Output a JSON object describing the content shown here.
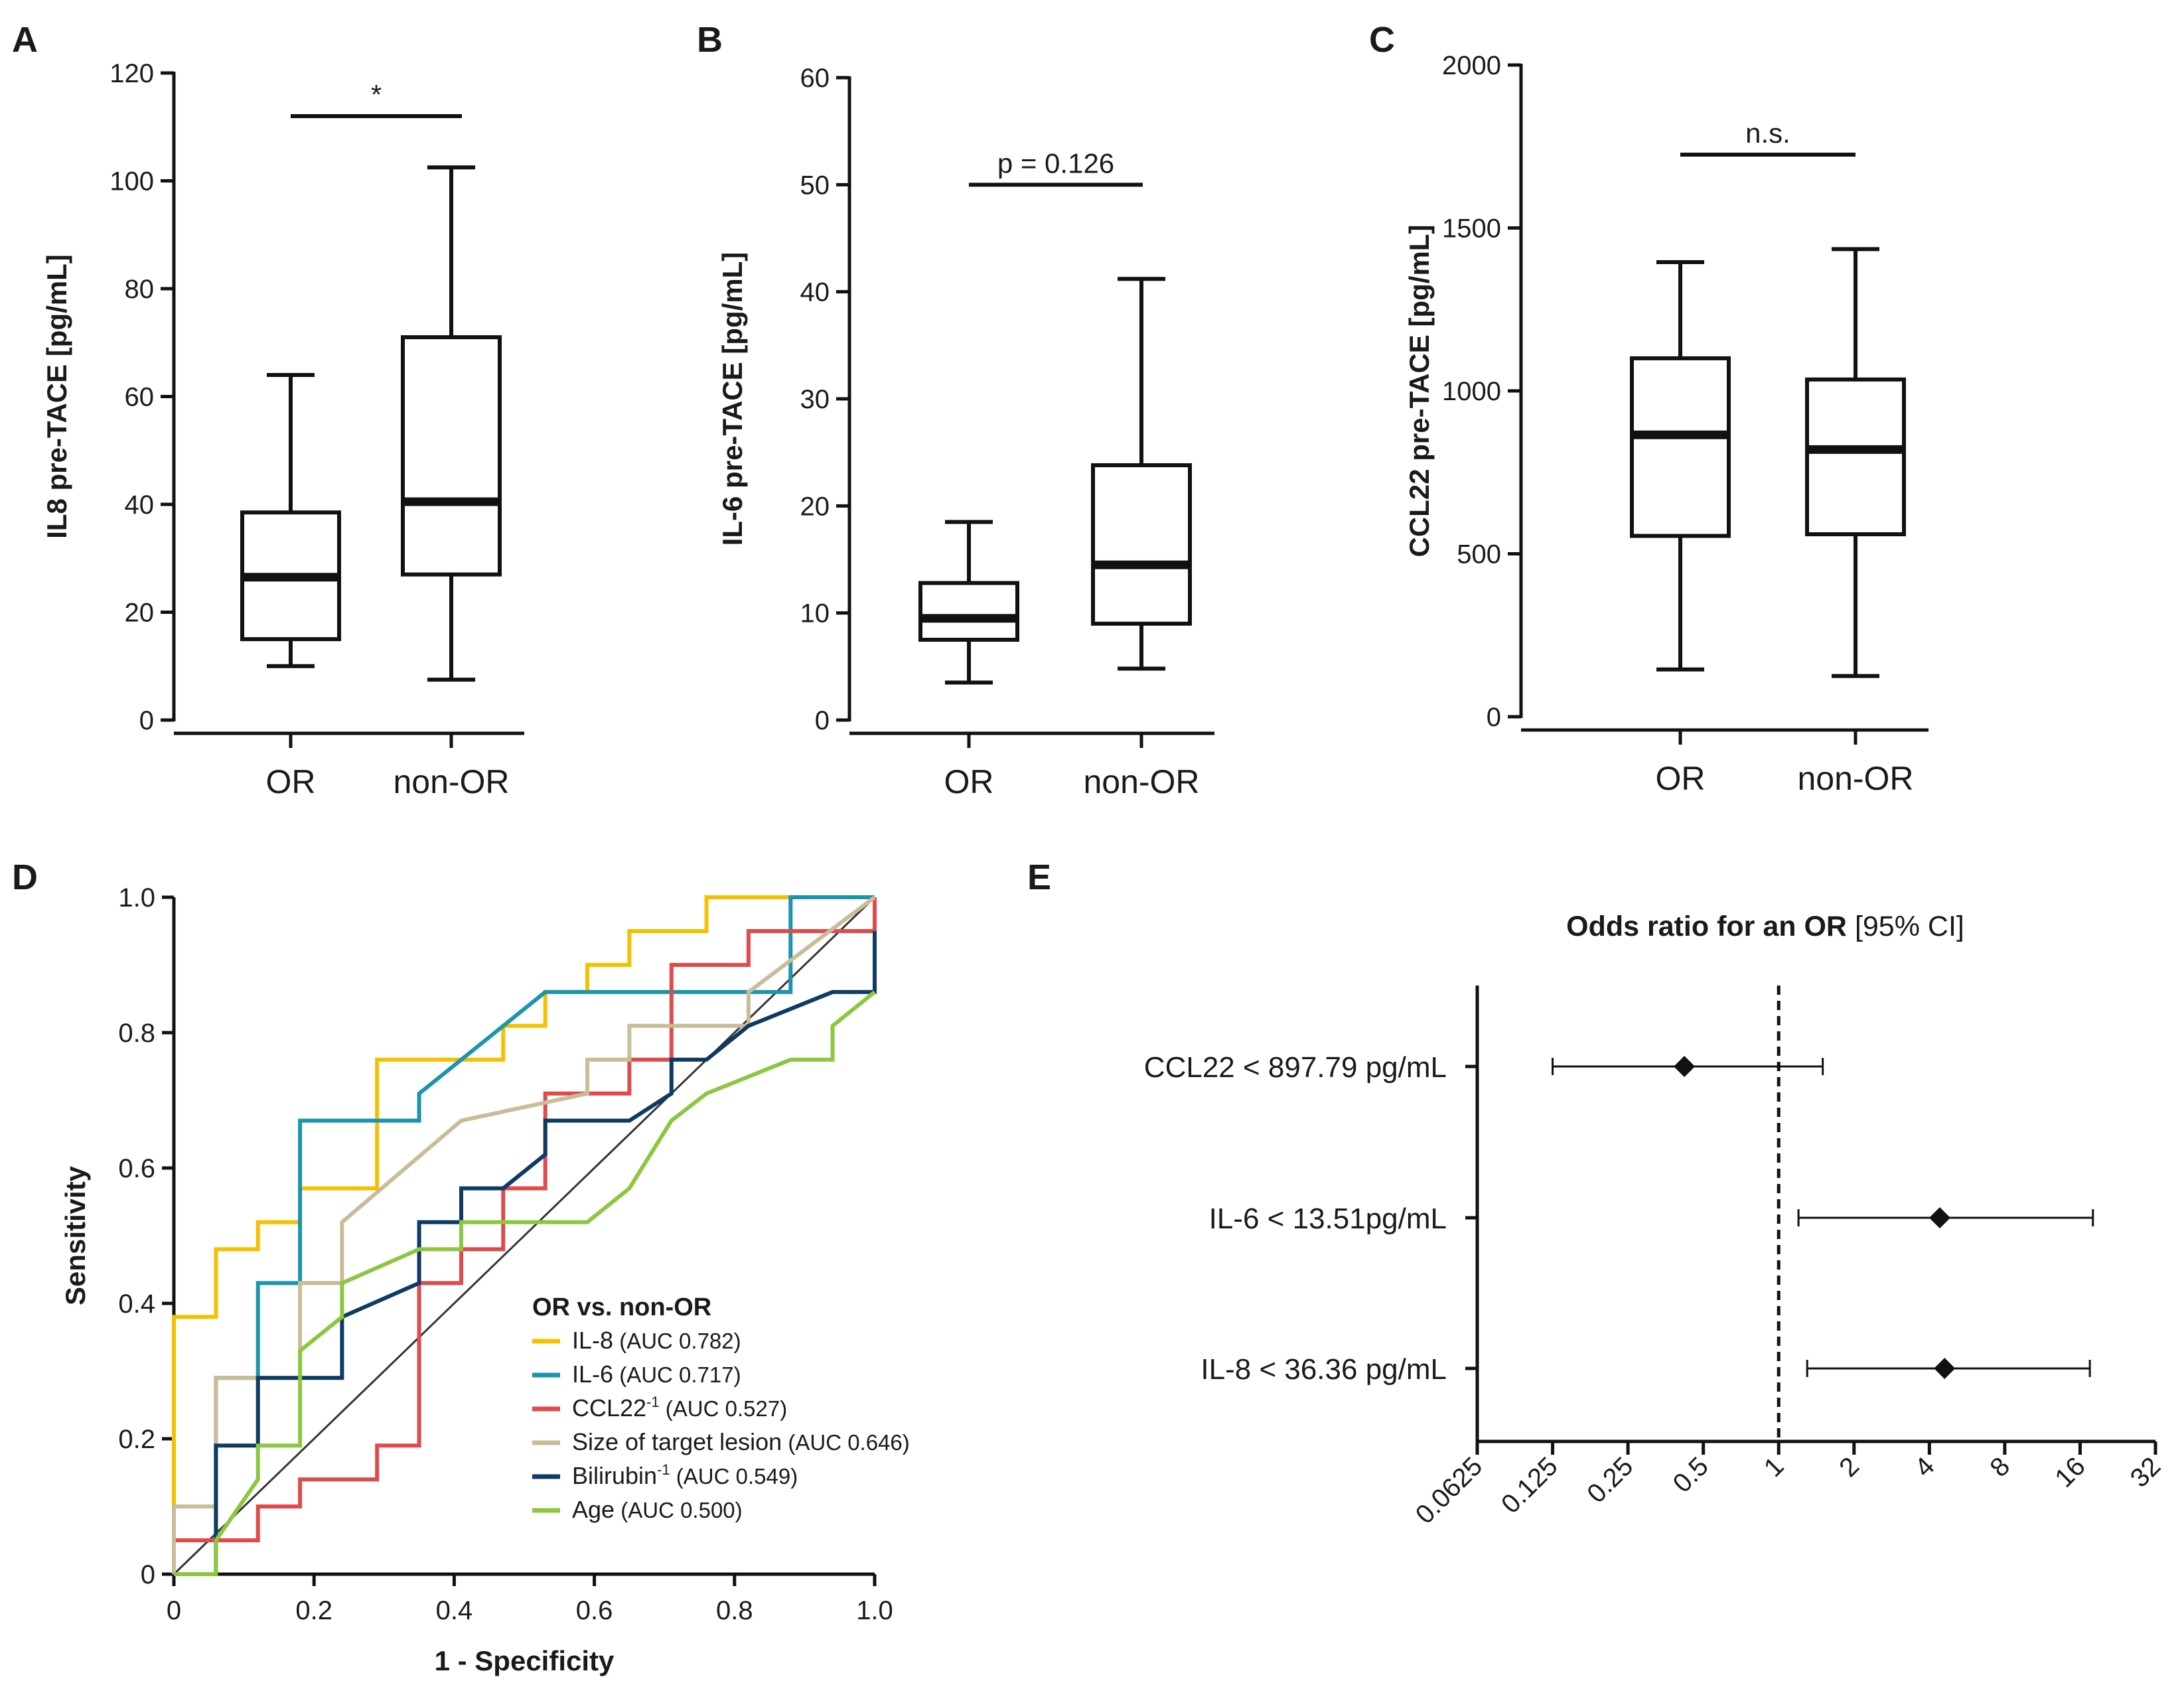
{
  "chart_data": [
    {
      "panel": "A",
      "type": "box",
      "ylabel": "IL8 pre-TACE [pg/mL]",
      "ylim": [
        0,
        120
      ],
      "yticks": [
        0,
        20,
        40,
        60,
        80,
        100,
        120
      ],
      "categories": [
        "OR",
        "non-OR"
      ],
      "boxes": [
        {
          "min": 10,
          "q1": 15,
          "median": 26.5,
          "q3": 38.5,
          "max": 64
        },
        {
          "min": 7.5,
          "q1": 27,
          "median": 40.5,
          "q3": 71,
          "max": 102.5
        }
      ],
      "significance": {
        "label": "*",
        "y": 112
      }
    },
    {
      "panel": "B",
      "type": "box",
      "ylabel": "IL-6 pre-TACE [pg/mL]",
      "ylim": [
        0,
        60
      ],
      "yticks": [
        0,
        10,
        20,
        30,
        40,
        50,
        60
      ],
      "categories": [
        "OR",
        "non-OR"
      ],
      "boxes": [
        {
          "min": 3.5,
          "q1": 7.5,
          "median": 9.5,
          "q3": 12.8,
          "max": 18.5
        },
        {
          "min": 4.8,
          "q1": 9,
          "median": 14.5,
          "q3": 23.8,
          "max": 41.2
        }
      ],
      "significance": {
        "label": "p = 0.126",
        "y": 50
      }
    },
    {
      "panel": "C",
      "type": "box",
      "ylabel": "CCL22 pre-TACE [pg/mL]",
      "ylim": [
        0,
        2000
      ],
      "yticks": [
        0,
        500,
        1000,
        1500,
        2000
      ],
      "categories": [
        "OR",
        "non-OR"
      ],
      "boxes": [
        {
          "min": 145,
          "q1": 555,
          "median": 865,
          "q3": 1100,
          "max": 1395
        },
        {
          "min": 125,
          "q1": 560,
          "median": 820,
          "q3": 1035,
          "max": 1435
        }
      ],
      "significance": {
        "label": "n.s.",
        "y": 1725
      }
    },
    {
      "panel": "D",
      "type": "line",
      "xlabel": "1 - Specificity",
      "ylabel": "Sensitivity",
      "xlim": [
        0,
        1
      ],
      "ylim": [
        0,
        1
      ],
      "xticks": [
        "0",
        "0.2",
        "0.4",
        "0.6",
        "0.8",
        "1.0"
      ],
      "yticks": [
        "0",
        "0.2",
        "0.4",
        "0.6",
        "0.8",
        "1.0"
      ],
      "legend_title": "OR vs. non-OR",
      "series": [
        {
          "name": "IL-8",
          "auc_label": "(AUC 0.782)",
          "color": "#f5c000",
          "points": [
            [
              0,
              0
            ],
            [
              0,
              0.38
            ],
            [
              0.06,
              0.38
            ],
            [
              0.06,
              0.48
            ],
            [
              0.12,
              0.48
            ],
            [
              0.12,
              0.52
            ],
            [
              0.18,
              0.52
            ],
            [
              0.18,
              0.57
            ],
            [
              0.29,
              0.57
            ],
            [
              0.29,
              0.76
            ],
            [
              0.47,
              0.76
            ],
            [
              0.47,
              0.81
            ],
            [
              0.53,
              0.81
            ],
            [
              0.53,
              0.86
            ],
            [
              0.59,
              0.86
            ],
            [
              0.59,
              0.9
            ],
            [
              0.65,
              0.9
            ],
            [
              0.65,
              0.95
            ],
            [
              0.76,
              0.95
            ],
            [
              0.76,
              1.0
            ],
            [
              1.0,
              1.0
            ]
          ]
        },
        {
          "name": "IL-6",
          "auc_label": "(AUC 0.717)",
          "color": "#1b94ad",
          "points": [
            [
              0,
              0
            ],
            [
              0.06,
              0
            ],
            [
              0.06,
              0.29
            ],
            [
              0.12,
              0.29
            ],
            [
              0.12,
              0.33
            ],
            [
              0.12,
              0.43
            ],
            [
              0.18,
              0.43
            ],
            [
              0.18,
              0.67
            ],
            [
              0.35,
              0.67
            ],
            [
              0.35,
              0.71
            ],
            [
              0.41,
              0.76
            ],
            [
              0.53,
              0.86
            ],
            [
              0.88,
              0.86
            ],
            [
              0.88,
              1.0
            ],
            [
              1.0,
              1.0
            ]
          ]
        },
        {
          "name": "CCL22",
          "sup": "-1",
          "auc_label": "(AUC 0.527)",
          "color": "#e04a4a",
          "points": [
            [
              0,
              0
            ],
            [
              0,
              0.05
            ],
            [
              0.12,
              0.05
            ],
            [
              0.12,
              0.1
            ],
            [
              0.18,
              0.1
            ],
            [
              0.18,
              0.14
            ],
            [
              0.29,
              0.14
            ],
            [
              0.29,
              0.19
            ],
            [
              0.35,
              0.19
            ],
            [
              0.35,
              0.24
            ],
            [
              0.35,
              0.38
            ],
            [
              0.35,
              0.43
            ],
            [
              0.41,
              0.43
            ],
            [
              0.41,
              0.48
            ],
            [
              0.47,
              0.48
            ],
            [
              0.47,
              0.52
            ],
            [
              0.47,
              0.57
            ],
            [
              0.53,
              0.57
            ],
            [
              0.53,
              0.71
            ],
            [
              0.65,
              0.71
            ],
            [
              0.65,
              0.76
            ],
            [
              0.71,
              0.76
            ],
            [
              0.71,
              0.9
            ],
            [
              0.82,
              0.9
            ],
            [
              0.82,
              0.95
            ],
            [
              1.0,
              0.95
            ],
            [
              1.0,
              1.0
            ]
          ]
        },
        {
          "name": "Size of target lesion",
          "auc_label": "(AUC 0.646)",
          "color": "#c8bd98",
          "points": [
            [
              0,
              0
            ],
            [
              0,
              0.1
            ],
            [
              0.06,
              0.1
            ],
            [
              0.06,
              0.29
            ],
            [
              0.18,
              0.29
            ],
            [
              0.18,
              0.43
            ],
            [
              0.24,
              0.43
            ],
            [
              0.24,
              0.52
            ],
            [
              0.41,
              0.67
            ],
            [
              0.59,
              0.71
            ],
            [
              0.59,
              0.76
            ],
            [
              0.65,
              0.76
            ],
            [
              0.65,
              0.81
            ],
            [
              0.82,
              0.81
            ],
            [
              0.82,
              0.86
            ],
            [
              1.0,
              1.0
            ]
          ]
        },
        {
          "name": "Bilirubin",
          "sup": "-1",
          "auc_label": "(AUC 0.549)",
          "color": "#0e3a64",
          "points": [
            [
              0,
              0
            ],
            [
              0.06,
              0
            ],
            [
              0.06,
              0.19
            ],
            [
              0.12,
              0.19
            ],
            [
              0.12,
              0.29
            ],
            [
              0.24,
              0.29
            ],
            [
              0.24,
              0.38
            ],
            [
              0.35,
              0.43
            ],
            [
              0.35,
              0.52
            ],
            [
              0.41,
              0.52
            ],
            [
              0.41,
              0.57
            ],
            [
              0.47,
              0.57
            ],
            [
              0.53,
              0.62
            ],
            [
              0.53,
              0.67
            ],
            [
              0.65,
              0.67
            ],
            [
              0.71,
              0.71
            ],
            [
              0.71,
              0.76
            ],
            [
              0.76,
              0.76
            ],
            [
              0.82,
              0.81
            ],
            [
              0.94,
              0.86
            ],
            [
              1.0,
              0.86
            ],
            [
              1.0,
              0.95
            ]
          ]
        },
        {
          "name": "Age",
          "auc_label": "(AUC 0.500)",
          "color": "#8dc63f",
          "points": [
            [
              0,
              0
            ],
            [
              0.06,
              0
            ],
            [
              0.06,
              0.05
            ],
            [
              0.12,
              0.14
            ],
            [
              0.12,
              0.19
            ],
            [
              0.18,
              0.19
            ],
            [
              0.18,
              0.33
            ],
            [
              0.24,
              0.38
            ],
            [
              0.24,
              0.43
            ],
            [
              0.35,
              0.48
            ],
            [
              0.41,
              0.48
            ],
            [
              0.41,
              0.52
            ],
            [
              0.59,
              0.52
            ],
            [
              0.65,
              0.57
            ],
            [
              0.71,
              0.67
            ],
            [
              0.76,
              0.71
            ],
            [
              0.88,
              0.76
            ],
            [
              0.94,
              0.76
            ],
            [
              0.94,
              0.81
            ],
            [
              1.0,
              0.86
            ]
          ]
        }
      ]
    },
    {
      "panel": "E",
      "type": "forest",
      "title_bold": "Odds ratio for an OR",
      "title_rest": " [95% CI]",
      "xscale": "log2",
      "xticks": [
        "0.0625",
        "0.125",
        "0.25",
        "0.5",
        "1",
        "2",
        "4",
        "8",
        "16",
        "32"
      ],
      "reference": 1,
      "rows": [
        {
          "label": "CCL22 < 897.79 pg/mL",
          "or": 0.42,
          "lo": 0.125,
          "hi": 1.5
        },
        {
          "label": "IL-6 < 13.51pg/mL",
          "or": 4.4,
          "lo": 1.2,
          "hi": 18
        },
        {
          "label": "IL-8 < 36.36 pg/mL",
          "or": 4.6,
          "lo": 1.3,
          "hi": 17.5
        }
      ]
    }
  ]
}
